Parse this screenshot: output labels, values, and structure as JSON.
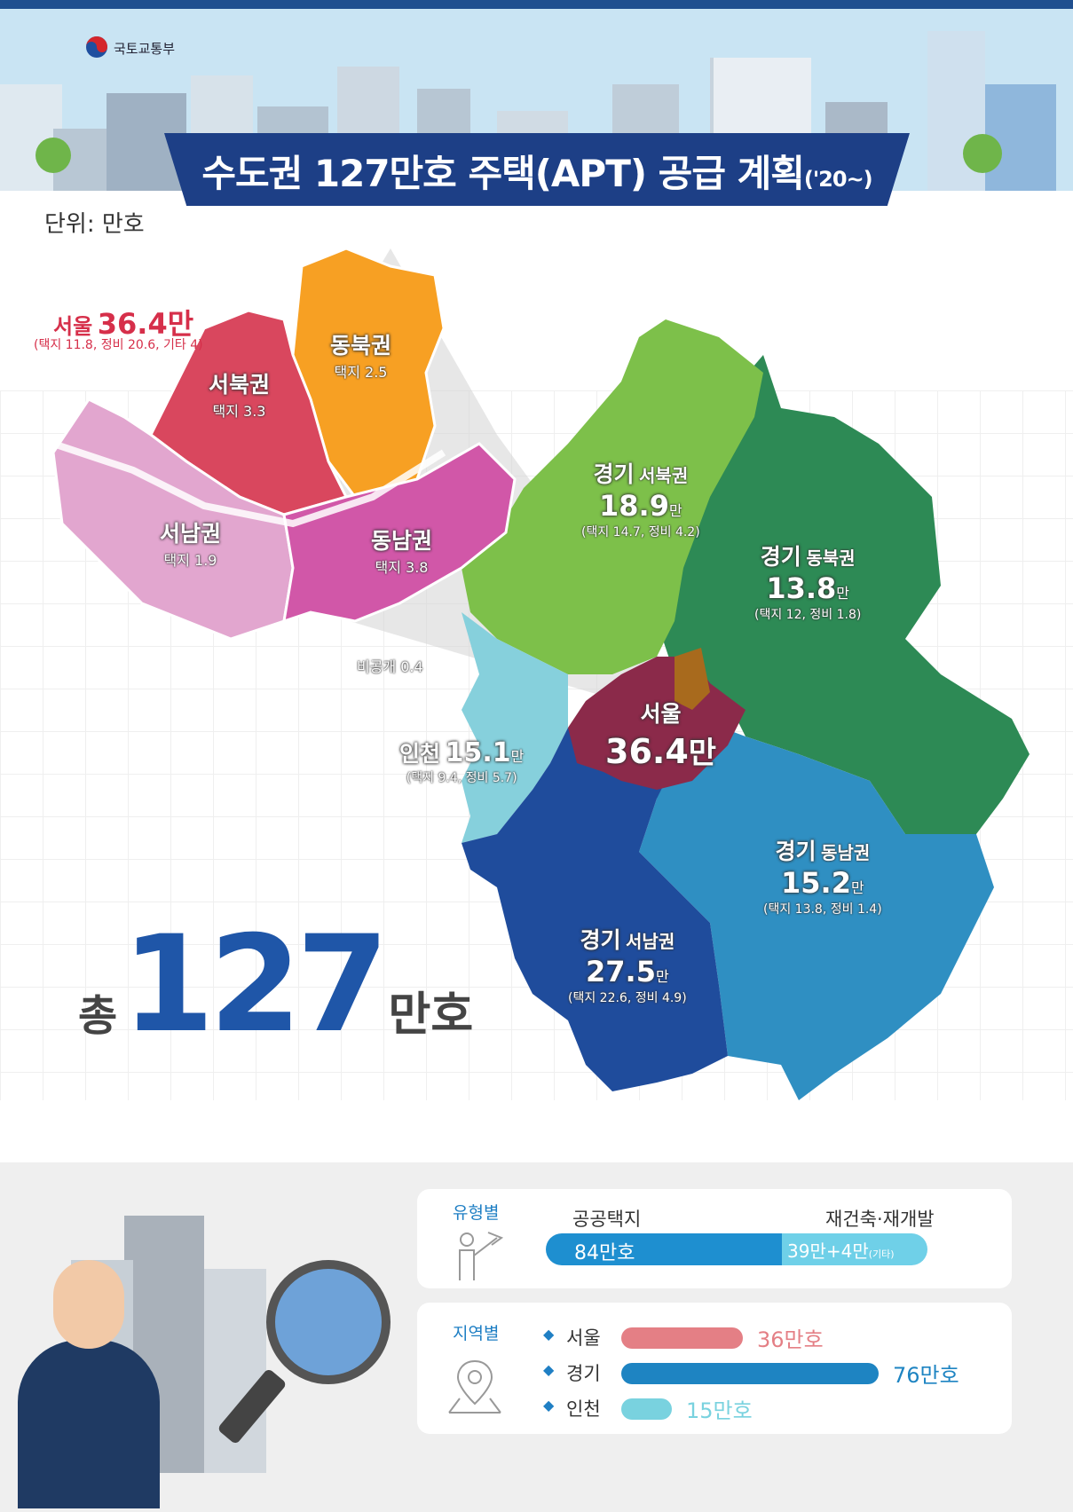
{
  "header": {
    "ministry": "국토교통부",
    "title_main": "수도권 127만호 주택(APT) 공급 계획",
    "title_suffix": "('20~)"
  },
  "unit_label": "단위: 만호",
  "seoul_inset": {
    "title_prefix": "서울",
    "title_value": "36.4만",
    "detail": "(택지 11.8, 정비 20.6, 기타 4)",
    "districts": [
      {
        "name": "서북권",
        "detail": "택지 3.3",
        "color": "#d9475e"
      },
      {
        "name": "동북권",
        "detail": "택지 2.5",
        "color": "#f7a023"
      },
      {
        "name": "서남권",
        "detail": "택지 1.9",
        "color": "#e2a6cf"
      },
      {
        "name": "동남권",
        "detail": "택지 3.8",
        "color": "#d157a8"
      }
    ],
    "undisclosed": "비공개 0.4"
  },
  "regions": [
    {
      "prefix": "경기",
      "name": "서북권",
      "value": "18.9",
      "unit": "만",
      "detail": "(택지 14.7, 정비 4.2)",
      "color": "#7dc04a"
    },
    {
      "prefix": "경기",
      "name": "동북권",
      "value": "13.8",
      "unit": "만",
      "detail": "(택지 12, 정비 1.8)",
      "color": "#2d8a55"
    },
    {
      "prefix": "인천",
      "name": "",
      "value": "15.1",
      "unit": "만",
      "detail": "(택지 9.4, 정비 5.7)",
      "color": "#86d0dc"
    },
    {
      "prefix": "서울",
      "name": "",
      "value": "36.4",
      "unit": "만",
      "detail": "",
      "color": "#8b2a4a"
    },
    {
      "prefix": "경기",
      "name": "동남권",
      "value": "15.2",
      "unit": "만",
      "detail": "(택지 13.8, 정비 1.4)",
      "color": "#2f8fc2"
    },
    {
      "prefix": "경기",
      "name": "서남권",
      "value": "27.5",
      "unit": "만",
      "detail": "(택지 22.6, 정비 4.9)",
      "color": "#1f4c9c"
    }
  ],
  "total": {
    "prefix": "총",
    "value": "127",
    "suffix": "만호"
  },
  "by_type": {
    "label": "유형별",
    "public_label": "공공택지",
    "public_value": "84만호",
    "public_fraction": 0.66,
    "redev_label": "재건축·재개발",
    "redev_value": "39만+4만",
    "redev_note": "(기타)",
    "colors": {
      "public": "#1e8fd0",
      "redev": "#6fd0e8"
    }
  },
  "by_region": {
    "label": "지역별",
    "items": [
      {
        "name": "서울",
        "value": "36만호",
        "amount": 36,
        "color": "#e47f85"
      },
      {
        "name": "경기",
        "value": "76만호",
        "amount": 76,
        "color": "#1e84c2"
      },
      {
        "name": "인천",
        "value": "15만호",
        "amount": 15,
        "color": "#79d2df"
      }
    ]
  }
}
